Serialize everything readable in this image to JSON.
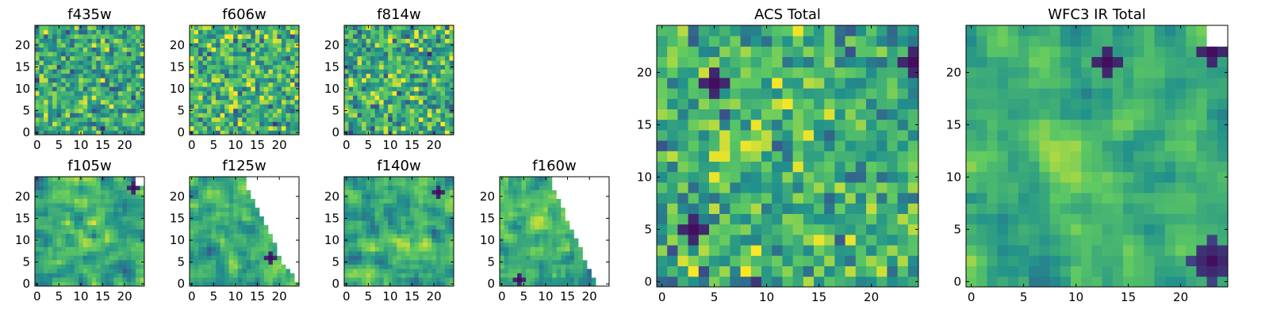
{
  "figure": {
    "background": "#ffffff"
  },
  "colormap": {
    "name": "viridis",
    "stops": [
      "#440154",
      "#3b528b",
      "#21918c",
      "#5ec962",
      "#fde725"
    ],
    "nan_color": "#ffffff"
  },
  "chart_data": [
    {
      "id": "f435w",
      "type": "heatmap",
      "title": "f435w",
      "grid_size": 25,
      "xticks": [
        0,
        5,
        10,
        15,
        20
      ],
      "yticks": [
        0,
        5,
        10,
        15,
        20
      ],
      "texture": "noise",
      "seed": 11,
      "mean": 0.6,
      "spread": 0.24,
      "smooth": 0,
      "mask": "none",
      "dark_patches": [],
      "bright_patches": []
    },
    {
      "id": "f606w",
      "type": "heatmap",
      "title": "f606w",
      "grid_size": 25,
      "xticks": [
        0,
        5,
        10,
        15,
        20
      ],
      "yticks": [
        0,
        5,
        10,
        15,
        20
      ],
      "texture": "noise",
      "seed": 23,
      "mean": 0.65,
      "spread": 0.26,
      "smooth": 0,
      "mask": "none",
      "dark_patches": [],
      "bright_patches": []
    },
    {
      "id": "f814w",
      "type": "heatmap",
      "title": "f814w",
      "grid_size": 25,
      "xticks": [
        0,
        5,
        10,
        15,
        20
      ],
      "yticks": [
        0,
        5,
        10,
        15,
        20
      ],
      "texture": "noise",
      "seed": 37,
      "mean": 0.62,
      "spread": 0.26,
      "smooth": 0,
      "mask": "none",
      "dark_patches": [],
      "bright_patches": [
        [
          10,
          14,
          3
        ]
      ]
    },
    {
      "id": "f105w",
      "type": "heatmap",
      "title": "f105w",
      "grid_size": 25,
      "xticks": [
        0,
        5,
        10,
        15,
        20
      ],
      "yticks": [
        0,
        5,
        10,
        15,
        20
      ],
      "texture": "smooth",
      "seed": 41,
      "mean": 0.6,
      "spread": 0.22,
      "smooth": 1,
      "mask": "top-right-corner",
      "dark_patches": [
        [
          22,
          22,
          1
        ]
      ],
      "bright_patches": [
        [
          11,
          11,
          4
        ]
      ]
    },
    {
      "id": "f125w",
      "type": "heatmap",
      "title": "f125w",
      "grid_size": 25,
      "xticks": [
        0,
        5,
        10,
        15,
        20
      ],
      "yticks": [
        0,
        5,
        10,
        15,
        20
      ],
      "texture": "smooth",
      "seed": 53,
      "mean": 0.62,
      "spread": 0.2,
      "smooth": 1,
      "mask": "diagonal-wide",
      "dark_patches": [
        [
          18,
          6,
          1
        ]
      ],
      "bright_patches": [
        [
          4,
          18,
          4
        ]
      ]
    },
    {
      "id": "f140w",
      "type": "heatmap",
      "title": "f140w",
      "grid_size": 25,
      "xticks": [
        0,
        5,
        10,
        15,
        20
      ],
      "yticks": [
        0,
        5,
        10,
        15,
        20
      ],
      "texture": "smooth",
      "seed": 67,
      "mean": 0.63,
      "spread": 0.22,
      "smooth": 1,
      "mask": "none",
      "dark_patches": [
        [
          21,
          21,
          1
        ]
      ],
      "bright_patches": [
        [
          12,
          10,
          4
        ]
      ]
    },
    {
      "id": "f160w",
      "type": "heatmap",
      "title": "f160w",
      "grid_size": 25,
      "xticks": [
        0,
        5,
        10,
        15,
        20
      ],
      "yticks": [
        0,
        5,
        10,
        15,
        20
      ],
      "texture": "smooth",
      "seed": 79,
      "mean": 0.62,
      "spread": 0.22,
      "smooth": 1,
      "mask": "diagonal-narrow",
      "dark_patches": [
        [
          4,
          1,
          1
        ]
      ],
      "bright_patches": [
        [
          8,
          14,
          4
        ]
      ]
    },
    {
      "id": "acs_total",
      "type": "heatmap",
      "title": "ACS Total",
      "grid_size": 25,
      "xticks": [
        0,
        5,
        10,
        15,
        20
      ],
      "yticks": [
        0,
        5,
        10,
        15,
        20
      ],
      "texture": "noise",
      "seed": 97,
      "mean": 0.62,
      "spread": 0.22,
      "smooth": 0,
      "mask": "none",
      "dark_patches": [
        [
          3,
          5,
          1
        ],
        [
          5,
          19,
          1
        ],
        [
          24,
          21,
          1
        ]
      ],
      "bright_patches": [
        [
          9,
          14,
          2
        ],
        [
          5,
          13,
          2
        ]
      ]
    },
    {
      "id": "wfc3_ir_total",
      "type": "heatmap",
      "title": "WFC3 IR Total",
      "grid_size": 25,
      "xticks": [
        0,
        5,
        10,
        15,
        20
      ],
      "yticks": [
        0,
        5,
        10,
        15,
        20
      ],
      "texture": "smooth",
      "seed": 113,
      "mean": 0.62,
      "spread": 0.16,
      "smooth": 1,
      "mask": "top-right-corner",
      "dark_patches": [
        [
          23,
          2,
          2
        ],
        [
          23,
          22,
          1
        ],
        [
          13,
          21,
          1
        ]
      ],
      "bright_patches": [
        [
          11,
          12,
          5
        ]
      ]
    }
  ]
}
